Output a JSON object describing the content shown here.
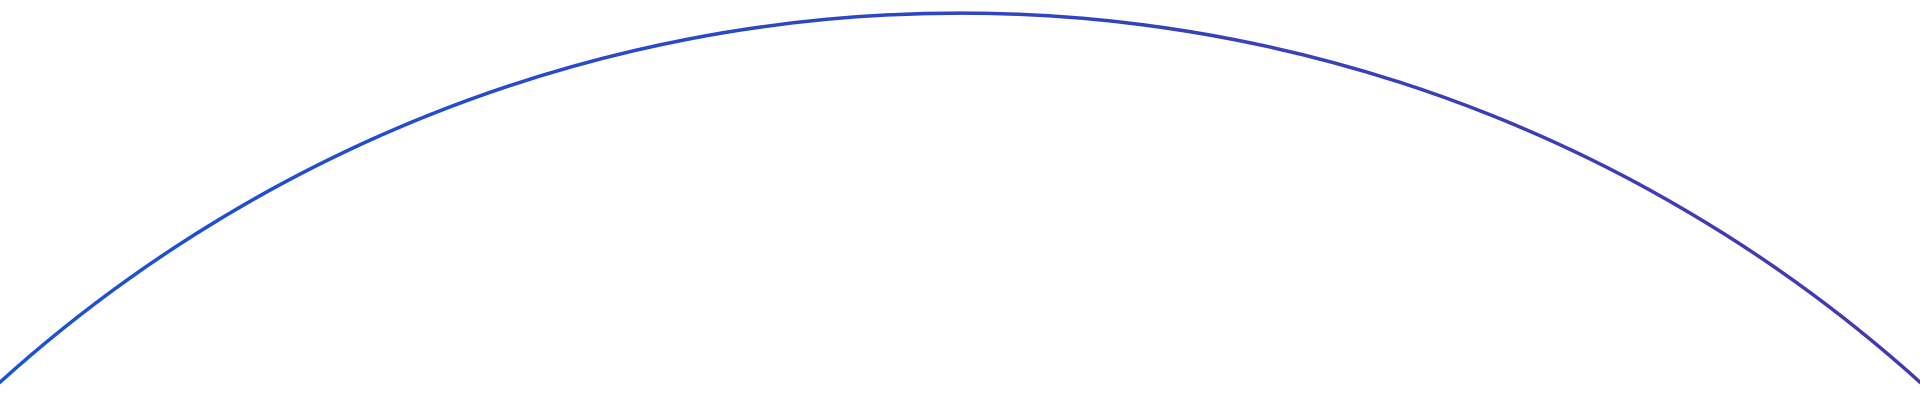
{
  "decoration": {
    "arc": {
      "color_start": "#1a52d6",
      "color_end": "#4538b0"
    }
  }
}
